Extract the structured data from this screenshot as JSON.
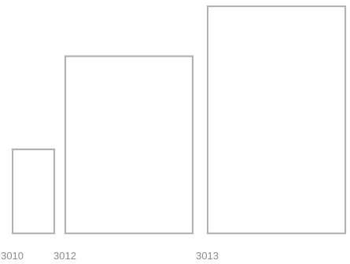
{
  "chart_data": {
    "type": "bar",
    "categories": [
      "3010",
      "3012",
      "3013"
    ],
    "values": [
      0.37,
      0.78,
      1.0
    ],
    "title": "",
    "xlabel": "",
    "ylabel": "",
    "ylim": [
      0,
      1
    ],
    "grid": false,
    "colors": {
      "bar_fill": "#ffffff",
      "bar_stroke": "#b3b3b3",
      "label": "#8c8c8c"
    }
  }
}
